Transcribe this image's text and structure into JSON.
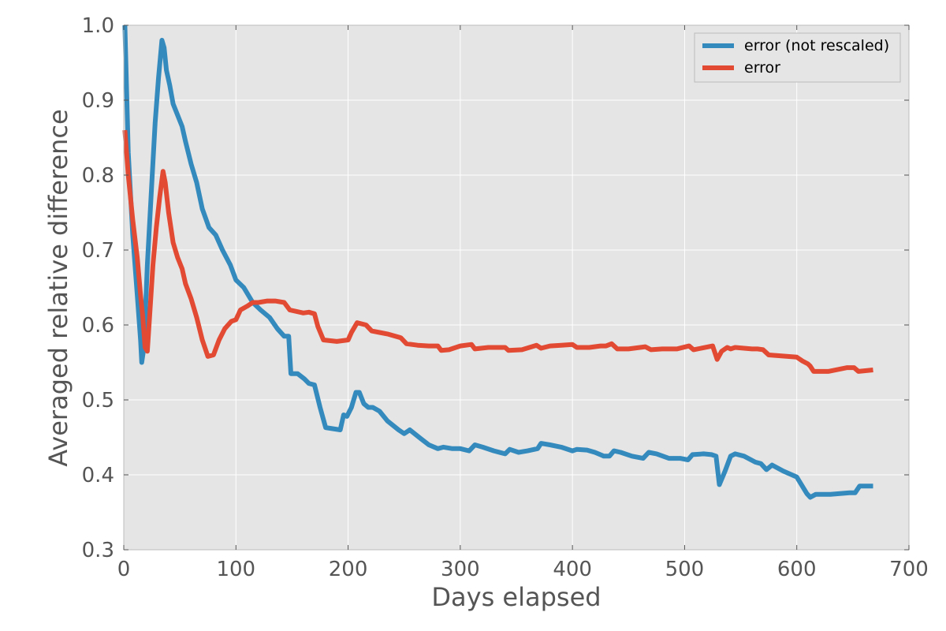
{
  "chart_data": {
    "type": "line",
    "title": "",
    "xlabel": "Days elapsed",
    "ylabel": "Averaged relative difference",
    "xlim": [
      0,
      700
    ],
    "ylim": [
      0.3,
      1.0
    ],
    "xticks": [
      "0",
      "100",
      "200",
      "300",
      "400",
      "500",
      "600",
      "700"
    ],
    "yticks": [
      "0.3",
      "0.4",
      "0.5",
      "0.6",
      "0.7",
      "0.8",
      "0.9",
      "1.0"
    ],
    "grid": true,
    "legend_position": "top-right",
    "series": [
      {
        "name": "error (not rescaled)",
        "color": "#348ABD",
        "points": [
          [
            1,
            1.0
          ],
          [
            4,
            0.83
          ],
          [
            8,
            0.72
          ],
          [
            12,
            0.64
          ],
          [
            15,
            0.58
          ],
          [
            16,
            0.55
          ],
          [
            18,
            0.57
          ],
          [
            21,
            0.68
          ],
          [
            25,
            0.79
          ],
          [
            28,
            0.87
          ],
          [
            31,
            0.93
          ],
          [
            34,
            0.98
          ],
          [
            36,
            0.97
          ],
          [
            38,
            0.94
          ],
          [
            41,
            0.92
          ],
          [
            44,
            0.895
          ],
          [
            48,
            0.88
          ],
          [
            52,
            0.865
          ],
          [
            55,
            0.845
          ],
          [
            60,
            0.815
          ],
          [
            65,
            0.79
          ],
          [
            70,
            0.755
          ],
          [
            76,
            0.73
          ],
          [
            82,
            0.72
          ],
          [
            88,
            0.7
          ],
          [
            95,
            0.68
          ],
          [
            100,
            0.66
          ],
          [
            107,
            0.65
          ],
          [
            115,
            0.63
          ],
          [
            122,
            0.62
          ],
          [
            130,
            0.61
          ],
          [
            137,
            0.595
          ],
          [
            143,
            0.585
          ],
          [
            147,
            0.585
          ],
          [
            149,
            0.535
          ],
          [
            155,
            0.535
          ],
          [
            161,
            0.528
          ],
          [
            165,
            0.522
          ],
          [
            170,
            0.52
          ],
          [
            175,
            0.49
          ],
          [
            180,
            0.463
          ],
          [
            193,
            0.46
          ],
          [
            196,
            0.48
          ],
          [
            199,
            0.478
          ],
          [
            203,
            0.49
          ],
          [
            207,
            0.51
          ],
          [
            210,
            0.51
          ],
          [
            214,
            0.495
          ],
          [
            218,
            0.49
          ],
          [
            222,
            0.49
          ],
          [
            228,
            0.485
          ],
          [
            235,
            0.472
          ],
          [
            245,
            0.46
          ],
          [
            250,
            0.455
          ],
          [
            255,
            0.46
          ],
          [
            265,
            0.448
          ],
          [
            272,
            0.44
          ],
          [
            280,
            0.435
          ],
          [
            285,
            0.437
          ],
          [
            293,
            0.435
          ],
          [
            300,
            0.435
          ],
          [
            308,
            0.432
          ],
          [
            313,
            0.44
          ],
          [
            320,
            0.437
          ],
          [
            330,
            0.432
          ],
          [
            340,
            0.428
          ],
          [
            344,
            0.434
          ],
          [
            352,
            0.43
          ],
          [
            360,
            0.432
          ],
          [
            369,
            0.435
          ],
          [
            372,
            0.442
          ],
          [
            380,
            0.44
          ],
          [
            390,
            0.437
          ],
          [
            400,
            0.432
          ],
          [
            404,
            0.434
          ],
          [
            413,
            0.433
          ],
          [
            420,
            0.43
          ],
          [
            428,
            0.425
          ],
          [
            433,
            0.425
          ],
          [
            437,
            0.432
          ],
          [
            443,
            0.43
          ],
          [
            453,
            0.425
          ],
          [
            463,
            0.422
          ],
          [
            468,
            0.43
          ],
          [
            475,
            0.428
          ],
          [
            486,
            0.422
          ],
          [
            496,
            0.422
          ],
          [
            503,
            0.42
          ],
          [
            507,
            0.427
          ],
          [
            517,
            0.428
          ],
          [
            524,
            0.427
          ],
          [
            528,
            0.425
          ],
          [
            531,
            0.387
          ],
          [
            536,
            0.405
          ],
          [
            541,
            0.425
          ],
          [
            545,
            0.428
          ],
          [
            553,
            0.425
          ],
          [
            563,
            0.417
          ],
          [
            568,
            0.415
          ],
          [
            573,
            0.407
          ],
          [
            578,
            0.413
          ],
          [
            588,
            0.405
          ],
          [
            600,
            0.397
          ],
          [
            609,
            0.375
          ],
          [
            612,
            0.37
          ],
          [
            617,
            0.374
          ],
          [
            630,
            0.374
          ],
          [
            647,
            0.376
          ],
          [
            652,
            0.376
          ],
          [
            656,
            0.385
          ],
          [
            668,
            0.385
          ]
        ]
      },
      {
        "name": "error",
        "color": "#E24A33",
        "points": [
          [
            1,
            0.86
          ],
          [
            4,
            0.8
          ],
          [
            8,
            0.74
          ],
          [
            12,
            0.69
          ],
          [
            15,
            0.64
          ],
          [
            17,
            0.61
          ],
          [
            19,
            0.57
          ],
          [
            21,
            0.565
          ],
          [
            23,
            0.61
          ],
          [
            26,
            0.68
          ],
          [
            29,
            0.73
          ],
          [
            32,
            0.77
          ],
          [
            35,
            0.805
          ],
          [
            37,
            0.79
          ],
          [
            40,
            0.75
          ],
          [
            44,
            0.71
          ],
          [
            48,
            0.69
          ],
          [
            52,
            0.675
          ],
          [
            55,
            0.655
          ],
          [
            60,
            0.635
          ],
          [
            65,
            0.61
          ],
          [
            70,
            0.58
          ],
          [
            75,
            0.558
          ],
          [
            80,
            0.56
          ],
          [
            85,
            0.58
          ],
          [
            90,
            0.595
          ],
          [
            96,
            0.605
          ],
          [
            100,
            0.607
          ],
          [
            104,
            0.62
          ],
          [
            110,
            0.625
          ],
          [
            115,
            0.63
          ],
          [
            120,
            0.63
          ],
          [
            128,
            0.632
          ],
          [
            135,
            0.632
          ],
          [
            143,
            0.63
          ],
          [
            148,
            0.62
          ],
          [
            160,
            0.616
          ],
          [
            165,
            0.617
          ],
          [
            170,
            0.615
          ],
          [
            173,
            0.598
          ],
          [
            178,
            0.58
          ],
          [
            190,
            0.578
          ],
          [
            200,
            0.58
          ],
          [
            203,
            0.59
          ],
          [
            208,
            0.603
          ],
          [
            216,
            0.6
          ],
          [
            221,
            0.592
          ],
          [
            228,
            0.59
          ],
          [
            235,
            0.588
          ],
          [
            247,
            0.583
          ],
          [
            252,
            0.575
          ],
          [
            262,
            0.573
          ],
          [
            272,
            0.572
          ],
          [
            280,
            0.572
          ],
          [
            283,
            0.566
          ],
          [
            290,
            0.567
          ],
          [
            300,
            0.572
          ],
          [
            310,
            0.574
          ],
          [
            313,
            0.568
          ],
          [
            325,
            0.57
          ],
          [
            340,
            0.57
          ],
          [
            343,
            0.566
          ],
          [
            355,
            0.567
          ],
          [
            368,
            0.573
          ],
          [
            372,
            0.569
          ],
          [
            380,
            0.572
          ],
          [
            390,
            0.573
          ],
          [
            400,
            0.574
          ],
          [
            404,
            0.57
          ],
          [
            415,
            0.57
          ],
          [
            425,
            0.572
          ],
          [
            430,
            0.572
          ],
          [
            435,
            0.575
          ],
          [
            440,
            0.568
          ],
          [
            450,
            0.568
          ],
          [
            465,
            0.571
          ],
          [
            470,
            0.567
          ],
          [
            480,
            0.568
          ],
          [
            493,
            0.568
          ],
          [
            504,
            0.572
          ],
          [
            508,
            0.567
          ],
          [
            525,
            0.572
          ],
          [
            529,
            0.554
          ],
          [
            533,
            0.565
          ],
          [
            538,
            0.57
          ],
          [
            541,
            0.568
          ],
          [
            545,
            0.57
          ],
          [
            560,
            0.568
          ],
          [
            565,
            0.568
          ],
          [
            570,
            0.567
          ],
          [
            575,
            0.56
          ],
          [
            600,
            0.557
          ],
          [
            605,
            0.552
          ],
          [
            610,
            0.548
          ],
          [
            612,
            0.545
          ],
          [
            615,
            0.538
          ],
          [
            628,
            0.538
          ],
          [
            645,
            0.543
          ],
          [
            651,
            0.543
          ],
          [
            655,
            0.538
          ],
          [
            668,
            0.54
          ]
        ]
      }
    ]
  }
}
